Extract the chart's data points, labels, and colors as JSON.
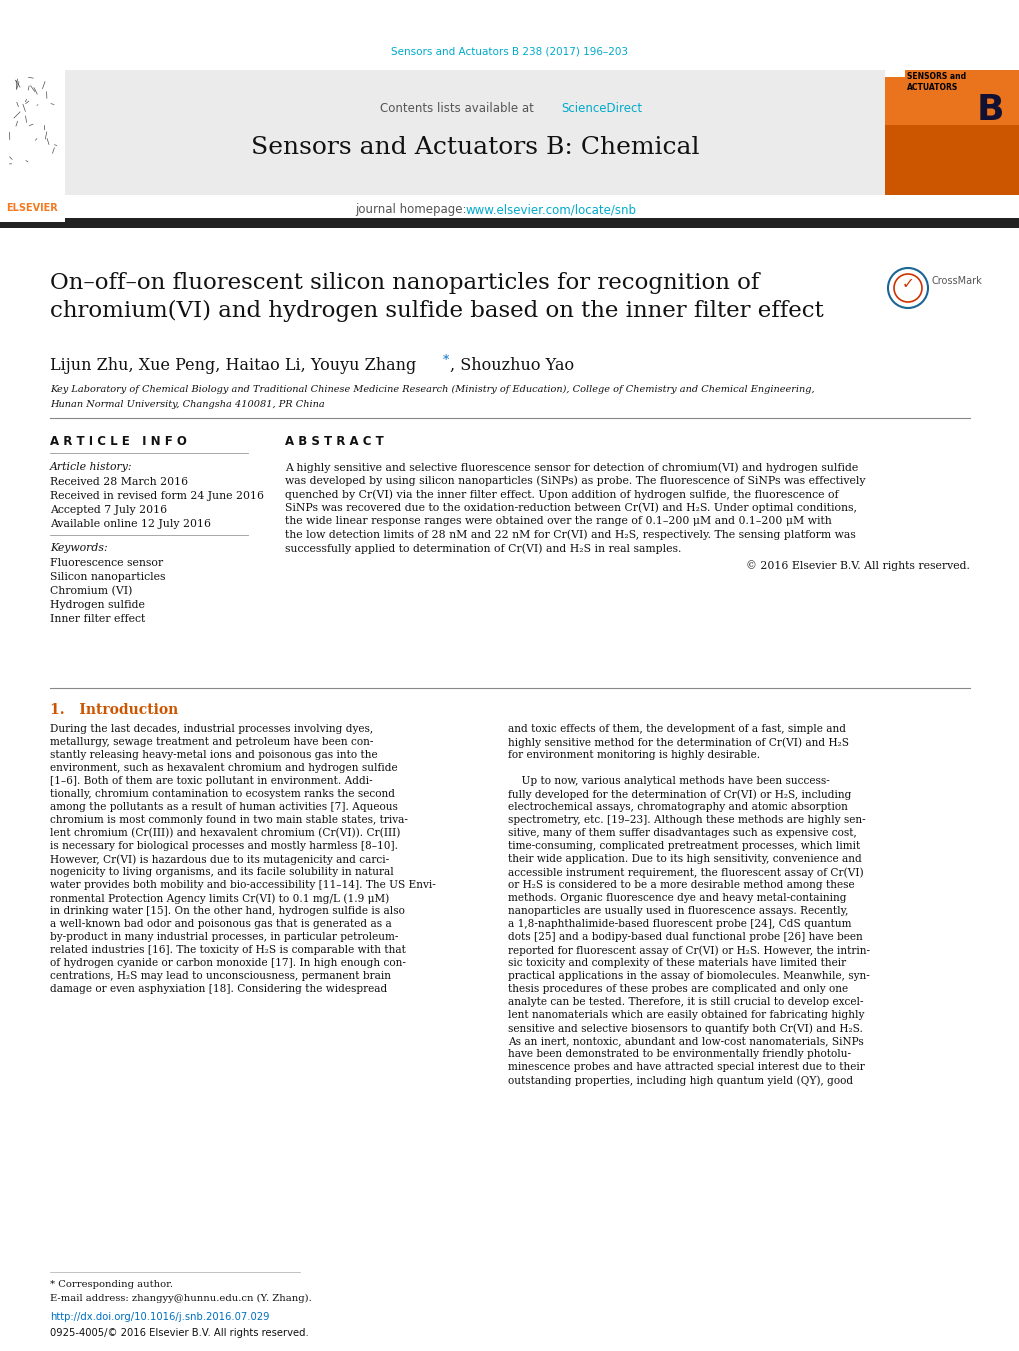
{
  "page_bg": "#ffffff",
  "journal_ref": "Sensors and Actuators B 238 (2017) 196–203",
  "journal_ref_color": "#00aacc",
  "header_bg": "#e8e8e8",
  "contents_text": "Contents lists available at ",
  "science_direct": "ScienceDirect",
  "science_direct_color": "#00aacc",
  "journal_name": "Sensors and Actuators B: Chemical",
  "journal_homepage_text": "journal homepage: ",
  "journal_url": "www.elsevier.com/locate/snb",
  "journal_url_color": "#00aacc",
  "title": "On–off–on fluorescent silicon nanoparticles for recognition of\nchromium(VI) and hydrogen sulfide based on the inner filter effect",
  "authors_part1": "Lijun Zhu, Xue Peng, Haitao Li, Youyu Zhang",
  "authors_star": "*",
  "authors_part2": ", Shouzhuo Yao",
  "affiliation1": "Key Laboratory of Chemical Biology and Traditional Chinese Medicine Research (Ministry of Education), College of Chemistry and Chemical Engineering,",
  "affiliation2": "Hunan Normal University, Changsha 410081, PR China",
  "article_info_header": "A R T I C L E   I N F O",
  "abstract_header": "A B S T R A C T",
  "article_history_label": "Article history:",
  "received": "Received 28 March 2016",
  "received_revised": "Received in revised form 24 June 2016",
  "accepted": "Accepted 7 July 2016",
  "available": "Available online 12 July 2016",
  "keywords_label": "Keywords:",
  "keywords": [
    "Fluorescence sensor",
    "Silicon nanoparticles",
    "Chromium (VI)",
    "Hydrogen sulfide",
    "Inner filter effect"
  ],
  "abstract_lines": [
    "A highly sensitive and selective fluorescence sensor for detection of chromium(VI) and hydrogen sulfide",
    "was developed by using silicon nanoparticles (SiNPs) as probe. The fluorescence of SiNPs was effectively",
    "quenched by Cr(VI) via the inner filter effect. Upon addition of hydrogen sulfide, the fluorescence of",
    "SiNPs was recovered due to the oxidation-reduction between Cr(VI) and H₂S. Under optimal conditions,",
    "the wide linear response ranges were obtained over the range of 0.1–200 μM and 0.1–200 μM with",
    "the low detection limits of 28 nM and 22 nM for Cr(VI) and H₂S, respectively. The sensing platform was",
    "successfully applied to determination of Cr(VI) and H₂S in real samples."
  ],
  "copyright": "© 2016 Elsevier B.V. All rights reserved.",
  "intro_header": "1.   Introduction",
  "col1_lines": [
    "During the last decades, industrial processes involving dyes,",
    "metallurgy, sewage treatment and petroleum have been con-",
    "stantly releasing heavy-metal ions and poisonous gas into the",
    "environment, such as hexavalent chromium and hydrogen sulfide",
    "[1–6]. Both of them are toxic pollutant in environment. Addi-",
    "tionally, chromium contamination to ecosystem ranks the second",
    "among the pollutants as a result of human activities [7]. Aqueous",
    "chromium is most commonly found in two main stable states, triva-",
    "lent chromium (Cr(III)) and hexavalent chromium (Cr(VI)). Cr(III)",
    "is necessary for biological processes and mostly harmless [8–10].",
    "However, Cr(VI) is hazardous due to its mutagenicity and carci-",
    "nogenicity to living organisms, and its facile solubility in natural",
    "water provides both mobility and bio-accessibility [11–14]. The US Envi-",
    "ronmental Protection Agency limits Cr(VI) to 0.1 mg/L (1.9 μM)",
    "in drinking water [15]. On the other hand, hydrogen sulfide is also",
    "a well-known bad odor and poisonous gas that is generated as a",
    "by-product in many industrial processes, in particular petroleum-",
    "related industries [16]. The toxicity of H₂S is comparable with that",
    "of hydrogen cyanide or carbon monoxide [17]. In high enough con-",
    "centrations, H₂S may lead to unconsciousness, permanent brain",
    "damage or even asphyxiation [18]. Considering the widespread"
  ],
  "col2_lines": [
    "and toxic effects of them, the development of a fast, simple and",
    "highly sensitive method for the determination of Cr(VI) and H₂S",
    "for environment monitoring is highly desirable.",
    "",
    "    Up to now, various analytical methods have been success-",
    "fully developed for the determination of Cr(VI) or H₂S, including",
    "electrochemical assays, chromatography and atomic absorption",
    "spectrometry, etc. [19–23]. Although these methods are highly sen-",
    "sitive, many of them suffer disadvantages such as expensive cost,",
    "time-consuming, complicated pretreatment processes, which limit",
    "their wide application. Due to its high sensitivity, convenience and",
    "accessible instrument requirement, the fluorescent assay of Cr(VI)",
    "or H₂S is considered to be a more desirable method among these",
    "methods. Organic fluorescence dye and heavy metal-containing",
    "nanoparticles are usually used in fluorescence assays. Recently,",
    "a 1,8-naphthalimide-based fluorescent probe [24], CdS quantum",
    "dots [25] and a bodipy-based dual functional probe [26] have been",
    "reported for fluorescent assay of Cr(VI) or H₂S. However, the intrin-",
    "sic toxicity and complexity of these materials have limited their",
    "practical applications in the assay of biomolecules. Meanwhile, syn-",
    "thesis procedures of these probes are complicated and only one",
    "analyte can be tested. Therefore, it is still crucial to develop excel-",
    "lent nanomaterials which are easily obtained for fabricating highly",
    "sensitive and selective biosensors to quantify both Cr(VI) and H₂S.",
    "As an inert, nontoxic, abundant and low-cost nanomaterials, SiNPs",
    "have been demonstrated to be environmentally friendly photolu-",
    "minescence probes and have attracted special interest due to their",
    "outstanding properties, including high quantum yield (QY), good"
  ],
  "corresponding_note": "* Corresponding author.",
  "email_note": "E-mail address: zhangyy@hunnu.edu.cn (Y. Zhang).",
  "doi": "http://dx.doi.org/10.1016/j.snb.2016.07.029",
  "issn": "0925-4005/© 2016 Elsevier B.V. All rights reserved.",
  "elsevier_orange": "#f47920",
  "crossmark_blue": "#1a6496",
  "link_color": "#0070c0",
  "text_color": "#111111"
}
